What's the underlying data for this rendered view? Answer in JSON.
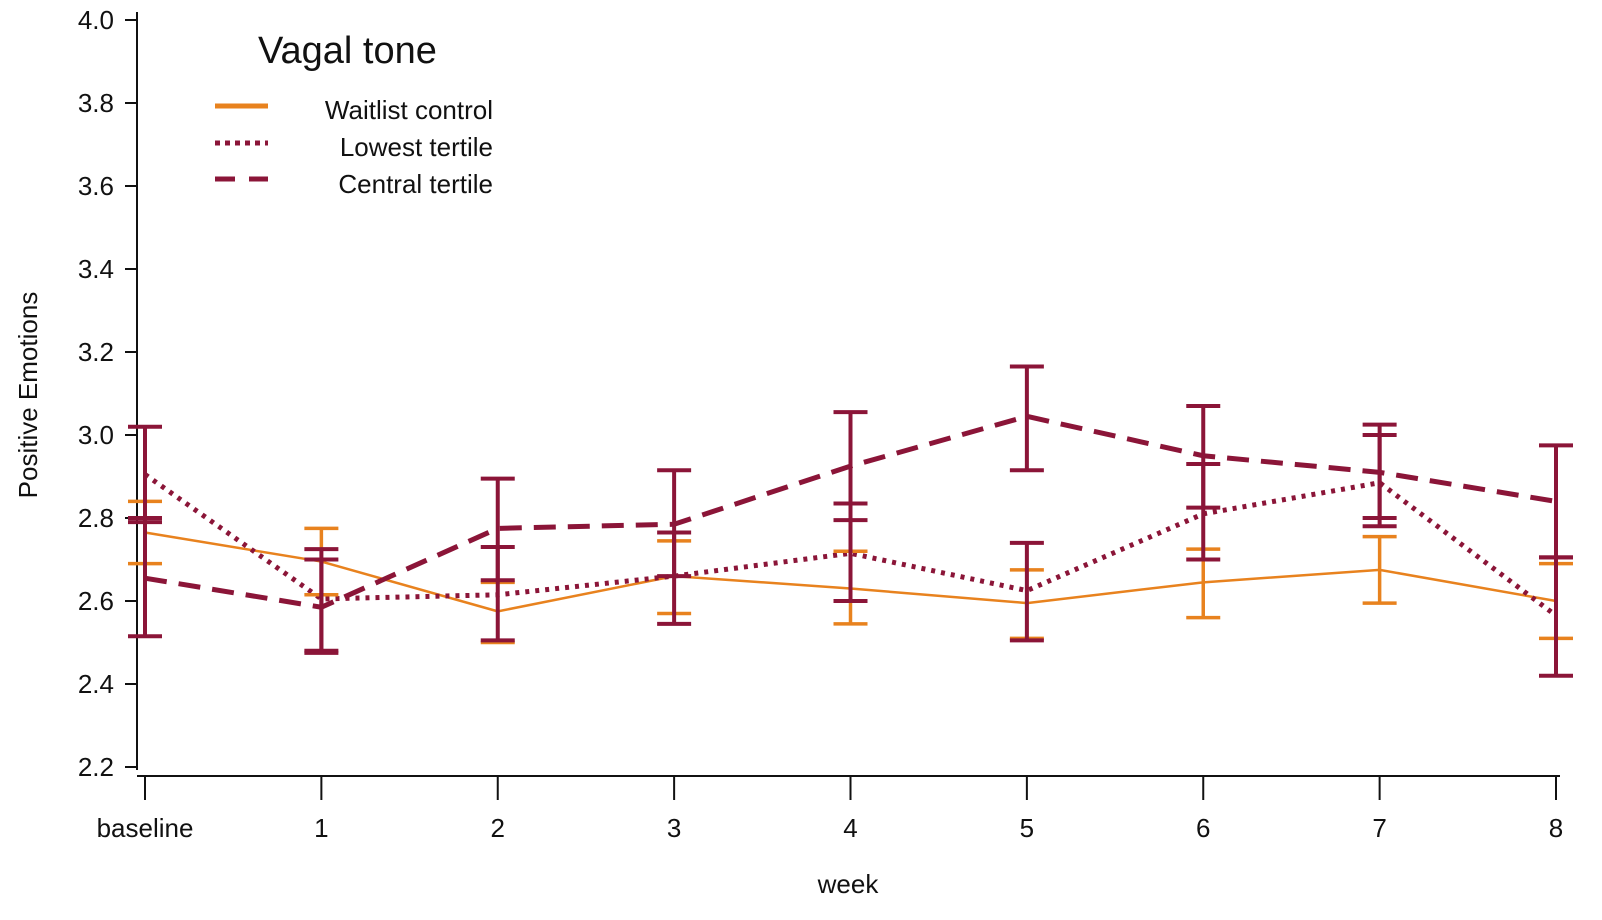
{
  "chart_data": {
    "type": "line",
    "xlabel": "week",
    "ylabel": "Positive Emotions",
    "ylim": [
      2.2,
      4.0
    ],
    "yticks": [
      "2.2",
      "2.4",
      "2.6",
      "2.8",
      "3.0",
      "3.2",
      "3.4",
      "3.6",
      "3.8",
      "4.0"
    ],
    "categories": [
      "baseline",
      "1",
      "2",
      "3",
      "4",
      "5",
      "6",
      "7",
      "8"
    ],
    "legend": {
      "title": "Vagal tone",
      "position": "top-left"
    },
    "series": [
      {
        "name": "Waitlist control",
        "color": "#E8821E",
        "style": "solid",
        "values": [
          2.765,
          2.695,
          2.575,
          2.66,
          2.63,
          2.595,
          2.645,
          2.675,
          2.6
        ],
        "error_low": [
          2.69,
          2.615,
          2.5,
          2.57,
          2.545,
          2.51,
          2.56,
          2.595,
          2.51
        ],
        "error_high": [
          2.84,
          2.775,
          2.645,
          2.745,
          2.72,
          2.675,
          2.725,
          2.755,
          2.69
        ]
      },
      {
        "name": "Lowest tertile",
        "color": "#8B1538",
        "style": "dotted",
        "values": [
          2.905,
          2.605,
          2.615,
          2.66,
          2.715,
          2.625,
          2.81,
          2.885,
          2.565
        ],
        "error_low": [
          2.79,
          2.48,
          2.505,
          2.545,
          2.6,
          2.505,
          2.7,
          2.78,
          2.42
        ],
        "error_high": [
          3.02,
          2.725,
          2.73,
          2.765,
          2.835,
          2.74,
          2.93,
          3.0,
          2.705
        ]
      },
      {
        "name": "Central tertile",
        "color": "#8B1538",
        "style": "dashed",
        "values": [
          2.655,
          2.585,
          2.775,
          2.785,
          2.925,
          3.045,
          2.95,
          2.91,
          2.84
        ],
        "error_low": [
          2.515,
          2.475,
          2.65,
          2.66,
          2.795,
          2.915,
          2.825,
          2.8,
          2.705
        ],
        "error_high": [
          2.8,
          2.7,
          2.895,
          2.915,
          3.055,
          3.165,
          3.07,
          3.025,
          2.975
        ]
      }
    ]
  }
}
